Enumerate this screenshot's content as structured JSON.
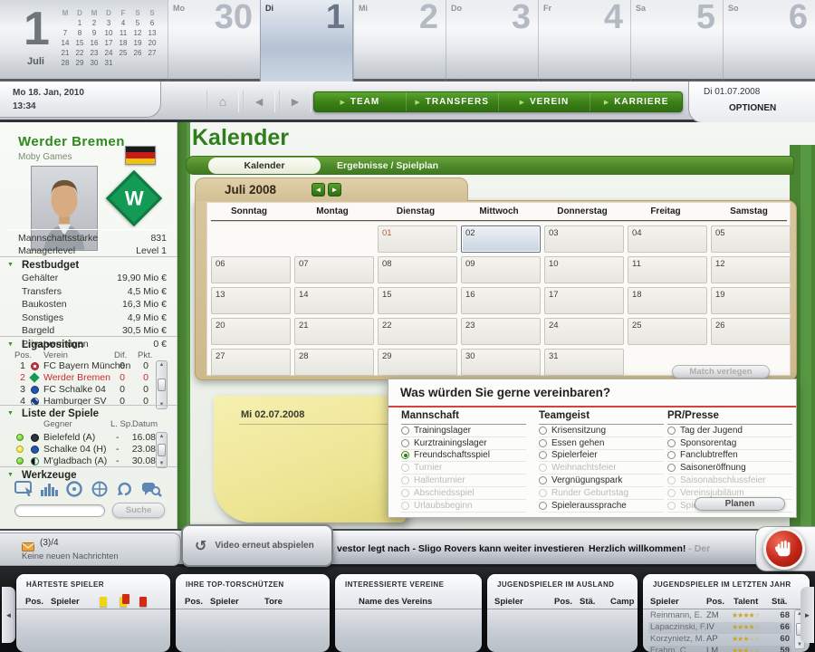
{
  "top_calendar": {
    "big_day": "1",
    "month_label": "Juli",
    "mini_headers": [
      "M",
      "D",
      "M",
      "D",
      "F",
      "S",
      "S"
    ],
    "mini_weeks": [
      [
        "",
        "1",
        "2",
        "3",
        "4",
        "5",
        "6"
      ],
      [
        "7",
        "8",
        "9",
        "10",
        "11",
        "12",
        "13"
      ],
      [
        "14",
        "15",
        "16",
        "17",
        "18",
        "19",
        "20"
      ],
      [
        "21",
        "22",
        "23",
        "24",
        "25",
        "26",
        "27"
      ],
      [
        "28",
        "29",
        "30",
        "31",
        "",
        "",
        ""
      ]
    ],
    "day_strip": [
      {
        "abbr": "Mo",
        "num": "30",
        "selected": false
      },
      {
        "abbr": "Di",
        "num": "1",
        "selected": true
      },
      {
        "abbr": "Mi",
        "num": "2",
        "selected": false
      },
      {
        "abbr": "Do",
        "num": "3",
        "selected": false
      },
      {
        "abbr": "Fr",
        "num": "4",
        "selected": false
      },
      {
        "abbr": "Sa",
        "num": "5",
        "selected": false
      },
      {
        "abbr": "So",
        "num": "6",
        "selected": false
      }
    ]
  },
  "navbar": {
    "datetime_line1": "Mo 18. Jan, 2010",
    "datetime_line2": "13:34",
    "menu": [
      {
        "label": "TEAM"
      },
      {
        "label": "TRANSFERS"
      },
      {
        "label": "VEREIN"
      },
      {
        "label": "KARRIERE"
      }
    ],
    "date_right": "Di 01.07.2008",
    "options_label": "OPTIONEN"
  },
  "sidebar": {
    "team_name": "Werder Bremen",
    "club_sub": "Moby Games",
    "stats": [
      {
        "label": "Mannschaftsstärke",
        "value": "831"
      },
      {
        "label": "Managerlevel",
        "value": "Level 1"
      }
    ],
    "restbudget": {
      "title": "Restbudget",
      "rows": [
        {
          "label": "Gehälter",
          "value": "19,90 Mio €"
        },
        {
          "label": "Transfers",
          "value": "4,5 Mio €"
        },
        {
          "label": "Baukosten",
          "value": "16,3 Mio €"
        },
        {
          "label": "Sonstiges",
          "value": "4,9 Mio €"
        },
        {
          "label": "Bargeld",
          "value": "30,5 Mio €"
        },
        {
          "label": "Privatvermögen",
          "value": "0 €"
        }
      ]
    },
    "ligaposition": {
      "title": "Ligaposition",
      "headers": {
        "pos": "Pos.",
        "verein": "Verein",
        "dif": "Dif.",
        "pkt": "Pkt."
      },
      "rows": [
        {
          "pos": "1",
          "icon": "bayern-crest-icon",
          "verein": "FC Bayern München",
          "dif": "0",
          "pkt": "0",
          "highlight": false
        },
        {
          "pos": "2",
          "icon": "werder-crest-icon",
          "verein": "Werder Bremen",
          "dif": "0",
          "pkt": "0",
          "highlight": true
        },
        {
          "pos": "3",
          "icon": "schalke-crest-icon",
          "verein": "FC Schalke 04",
          "dif": "0",
          "pkt": "0",
          "highlight": false
        },
        {
          "pos": "4",
          "icon": "hsv-crest-icon",
          "verein": "Hamburger SV",
          "dif": "0",
          "pkt": "0",
          "highlight": false
        }
      ]
    },
    "spiele": {
      "title": "Liste der Spiele",
      "headers": {
        "gegner": "Gegner",
        "lsp": "L. Sp.",
        "datum": "Datum"
      },
      "rows": [
        {
          "dot": "green",
          "icon": "bielefeld-crest-icon",
          "gegner": "Bielefeld (A)",
          "lsp": "-",
          "datum": "16.08"
        },
        {
          "dot": "yellow",
          "icon": "schalke-crest-icon",
          "gegner": "Schalke 04 (H)",
          "lsp": "-",
          "datum": "23.08"
        },
        {
          "dot": "green",
          "icon": "gladbach-crest-icon",
          "gegner": "M'gladbach (A)",
          "lsp": "-",
          "datum": "30.08"
        }
      ]
    },
    "werkzeuge": {
      "title": "Werkzeuge",
      "icons": [
        "screen-icon",
        "stats-icon",
        "disc-icon",
        "target-icon",
        "refresh-icon",
        "search-bubble-icon"
      ],
      "search_value": "",
      "search_button": "Suche"
    }
  },
  "main": {
    "page_title": "Kalender",
    "tabs": [
      {
        "label": "Kalender",
        "active": true
      },
      {
        "label": "Ergebnisse / Spielplan",
        "active": false
      }
    ],
    "month_title": "Juli 2008",
    "weekday_headers": [
      "Sonntag",
      "Montag",
      "Dienstag",
      "Mittwoch",
      "Donnerstag",
      "Freitag",
      "Samstag"
    ],
    "weeks": [
      [
        null,
        null,
        {
          "num": "01",
          "style": "red"
        },
        {
          "num": "02",
          "style": "selected"
        },
        {
          "num": "03"
        },
        {
          "num": "04"
        },
        {
          "num": "05"
        }
      ],
      [
        {
          "num": "06"
        },
        {
          "num": "07"
        },
        {
          "num": "08"
        },
        {
          "num": "09"
        },
        {
          "num": "10"
        },
        {
          "num": "11"
        },
        {
          "num": "12"
        }
      ],
      [
        {
          "num": "13"
        },
        {
          "num": "14"
        },
        {
          "num": "15"
        },
        {
          "num": "16"
        },
        {
          "num": "17"
        },
        {
          "num": "18"
        },
        {
          "num": "19"
        }
      ],
      [
        {
          "num": "20"
        },
        {
          "num": "21"
        },
        {
          "num": "22"
        },
        {
          "num": "23"
        },
        {
          "num": "24"
        },
        {
          "num": "25"
        },
        {
          "num": "26"
        }
      ],
      [
        {
          "num": "27"
        },
        {
          "num": "28"
        },
        {
          "num": "29"
        },
        {
          "num": "30"
        },
        {
          "num": "31"
        },
        null,
        null
      ]
    ],
    "match_verlegen_button": "Match verlegen",
    "note_date": "Mi 02.07.2008",
    "dialog": {
      "title": "Was würden Sie gerne vereinbaren?",
      "columns": [
        {
          "header": "Mannschaft",
          "options": [
            {
              "label": "Trainingslager",
              "state": "enabled"
            },
            {
              "label": "Kurztrainingslager",
              "state": "enabled"
            },
            {
              "label": "Freundschaftsspiel",
              "state": "selected"
            },
            {
              "label": "Turnier",
              "state": "disabled"
            },
            {
              "label": "Hallenturnier",
              "state": "disabled"
            },
            {
              "label": "Abschiedsspiel",
              "state": "disabled"
            },
            {
              "label": "Urlaubsbeginn",
              "state": "disabled"
            }
          ]
        },
        {
          "header": "Teamgeist",
          "options": [
            {
              "label": "Krisensitzung",
              "state": "enabled"
            },
            {
              "label": "Essen gehen",
              "state": "enabled"
            },
            {
              "label": "Spielerfeier",
              "state": "enabled"
            },
            {
              "label": "Weihnachtsfeier",
              "state": "disabled"
            },
            {
              "label": "Vergnügungspark",
              "state": "enabled"
            },
            {
              "label": "Runder Geburtstag",
              "state": "disabled"
            },
            {
              "label": "Spieleraussprache",
              "state": "enabled"
            }
          ]
        },
        {
          "header": "PR/Presse",
          "options": [
            {
              "label": "Tag der Jugend",
              "state": "enabled"
            },
            {
              "label": "Sponsorentag",
              "state": "enabled"
            },
            {
              "label": "Fanclubtreffen",
              "state": "enabled"
            },
            {
              "label": "Saisoneröffnung",
              "state": "enabled"
            },
            {
              "label": "Saisonabschlussfeier",
              "state": "disabled"
            },
            {
              "label": "Vereinsjubiläum",
              "state": "disabled"
            },
            {
              "label": "Spielerauszeichnungen",
              "state": "disabled"
            }
          ]
        }
      ],
      "planen_button": "Planen"
    }
  },
  "ticker": {
    "mail_count": "(3)/4",
    "mail_status": "Keine neuen Nachrichten",
    "video_button": "Video erneut abspielen",
    "news_1": "vestor legt nach - Sligo Rovers kann weiter investieren",
    "news_2": "Herzlich willkommen!",
    "news_2_suffix": " - Der"
  },
  "bottom": {
    "panels": [
      {
        "title": "HÄRTESTE SPIELER",
        "headers": [
          "Pos.",
          "Spieler"
        ],
        "card_icons": [
          "yellow-card-icon",
          "yellow-red-card-icon",
          "red-card-icon"
        ],
        "rows": []
      },
      {
        "title": "IHRE TOP-TORSCHÜTZEN",
        "headers": [
          "Pos.",
          "Spieler",
          "Tore"
        ],
        "rows": []
      },
      {
        "title": "INTERESSIERTE VEREINE",
        "headers": [
          "Name des Vereins"
        ],
        "rows": []
      },
      {
        "title": "JUGENDSPIELER IM AUSLAND",
        "headers": [
          "Spieler",
          "Pos.",
          "Stä.",
          "Camp"
        ],
        "rows": []
      },
      {
        "title": "JUGENDSPIELER IM LETZTEN JAHR",
        "headers": [
          "Spieler",
          "Pos.",
          "Talent",
          "Stä."
        ],
        "rows": [
          {
            "name": "Reinmann, E.",
            "pos": "ZM",
            "talent": 4,
            "sta": "68"
          },
          {
            "name": "Lapaczinski, F.",
            "pos": "IV",
            "talent": 4,
            "sta": "66"
          },
          {
            "name": "Korzynietz, M.",
            "pos": "AP",
            "talent": 3,
            "sta": "60"
          },
          {
            "name": "Frahm, C.",
            "pos": "LM",
            "talent": 3,
            "sta": "59"
          }
        ]
      }
    ]
  },
  "colors": {
    "accent_green": "#3c8a1e",
    "highlight_red": "#cc2a2a",
    "selection_blue": "#b5c2d4",
    "note_yellow": "#ece390"
  }
}
